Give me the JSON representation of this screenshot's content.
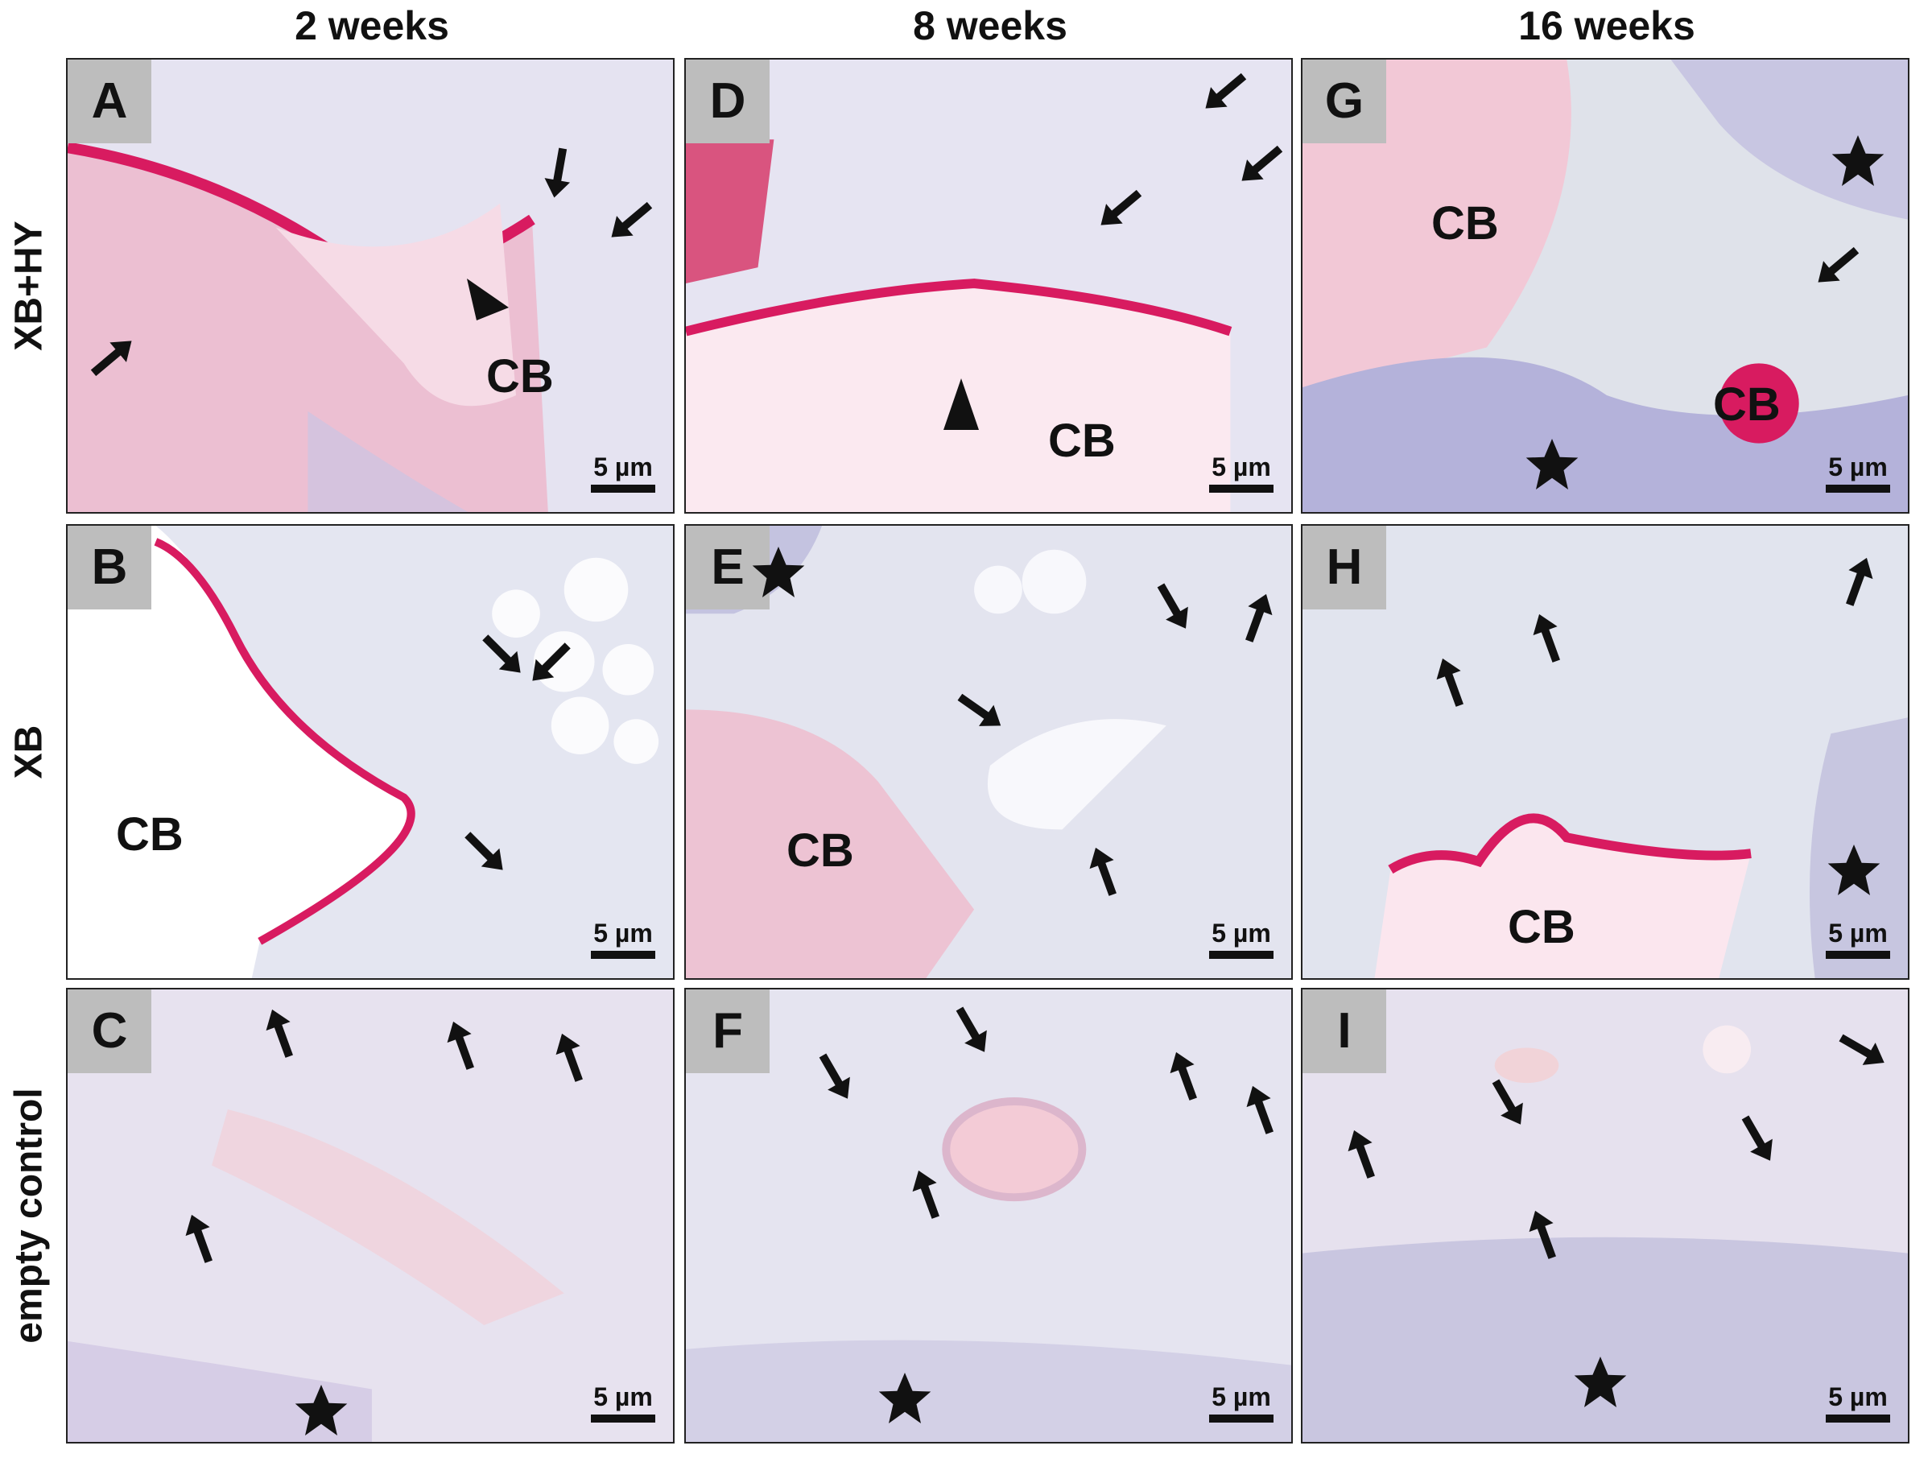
{
  "columns": [
    "2 weeks",
    "8 weeks",
    "16 weeks"
  ],
  "rows": [
    "XB+HY",
    "XB",
    "empty control"
  ],
  "scale_label": "5 µm",
  "cb_label": "CB",
  "colors": {
    "stain_pink": "#d81b60",
    "tissue_light": "#e6e4f2",
    "bone_lavender": "#b9b8dd",
    "letter_box": "#bdbdbd"
  },
  "icons": [
    "arrow-icon",
    "arrowhead-icon",
    "star-icon"
  ],
  "panels": {
    "A": {
      "letter": "A"
    },
    "B": {
      "letter": "B"
    },
    "C": {
      "letter": "C"
    },
    "D": {
      "letter": "D"
    },
    "E": {
      "letter": "E"
    },
    "F": {
      "letter": "F"
    },
    "G": {
      "letter": "G"
    },
    "H": {
      "letter": "H"
    },
    "I": {
      "letter": "I"
    }
  }
}
